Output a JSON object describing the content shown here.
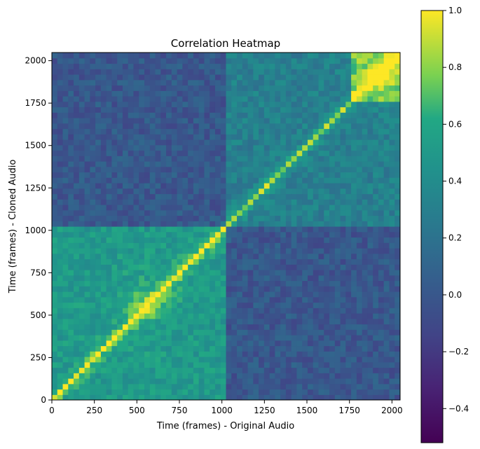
{
  "chart_data": {
    "type": "heatmap",
    "title": "Correlation Heatmap",
    "xlabel": "Time (frames) - Original Audio",
    "ylabel": "Time (frames) - Cloned Audio",
    "xlim": [
      0,
      2048
    ],
    "ylim": [
      0,
      2048
    ],
    "xticks": [
      0,
      250,
      500,
      750,
      1000,
      1250,
      1500,
      1750,
      2000
    ],
    "yticks": [
      0,
      250,
      500,
      750,
      1000,
      1250,
      1500,
      1750,
      2000
    ],
    "colormap": "viridis",
    "colorbar": {
      "vmin": -0.52,
      "vmax": 1.0,
      "ticks": [
        -0.4,
        -0.2,
        0.0,
        0.2,
        0.4,
        0.6,
        0.8,
        1.0
      ],
      "tick_labels": [
        "−0.4",
        "−0.2",
        "0.0",
        "0.2",
        "0.4",
        "0.6",
        "0.8",
        "1.0"
      ]
    },
    "regions": [
      {
        "name": "first-half-block",
        "x_range": [
          0,
          1024
        ],
        "y_range": [
          0,
          1024
        ],
        "approx_value": 0.5
      },
      {
        "name": "second-half-block",
        "x_range": [
          1024,
          2048
        ],
        "y_range": [
          1024,
          2048
        ],
        "approx_value": 0.3
      },
      {
        "name": "late-segment-block",
        "x_range": [
          1750,
          2048
        ],
        "y_range": [
          1750,
          2048
        ],
        "approx_value": 0.75
      },
      {
        "name": "cross-blocks",
        "x_range": [
          0,
          1024
        ],
        "y_range": [
          1024,
          2048
        ],
        "approx_value": 0.0
      }
    ],
    "diagonal": {
      "value": 1.0,
      "hotspots": [
        {
          "frame": 570,
          "value": 0.95
        },
        {
          "frame": 1950,
          "value": 0.9
        }
      ]
    }
  }
}
